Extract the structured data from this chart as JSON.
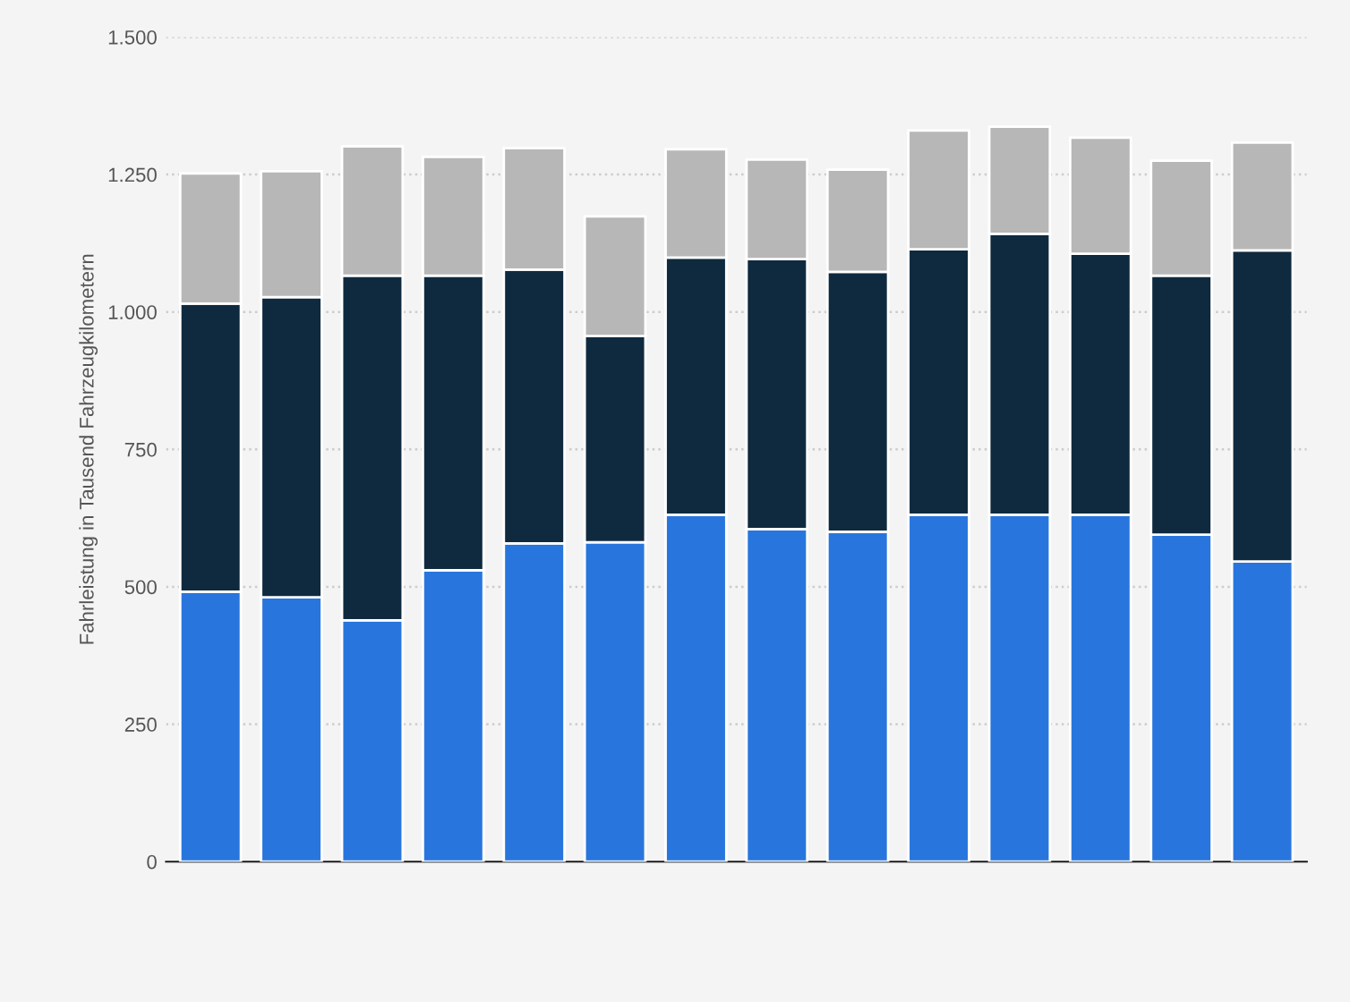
{
  "chart_data": {
    "type": "bar",
    "stacked": true,
    "ylabel": "Fahrleistung in Tausend Fahrzeugkilometern",
    "categories": [
      null,
      null,
      null,
      null,
      null,
      null,
      null,
      null,
      null,
      null,
      null,
      null,
      null,
      null
    ],
    "series": [
      {
        "color": "#2876dd",
        "values": [
          491,
          481,
          439,
          530,
          579,
          581,
          631,
          605,
          600,
          631,
          631,
          631,
          595,
          546
        ]
      },
      {
        "color": "#0f2a3f",
        "values": [
          524,
          546,
          627,
          536,
          498,
          375,
          468,
          491,
          473,
          483,
          511,
          475,
          471,
          566
        ]
      },
      {
        "color": "#b7b7b7",
        "values": [
          237,
          229,
          235,
          216,
          221,
          218,
          197,
          181,
          186,
          216,
          195,
          211,
          209,
          196
        ]
      }
    ],
    "ylim": [
      0,
      1500
    ],
    "yticks": [
      0,
      250,
      500,
      750,
      {
        "value": 1000,
        "label": "1.000"
      },
      {
        "value": 1250,
        "label": "1.250"
      },
      {
        "value": 1500,
        "label": "1.500"
      }
    ],
    "grid": "y",
    "legend": false
  }
}
